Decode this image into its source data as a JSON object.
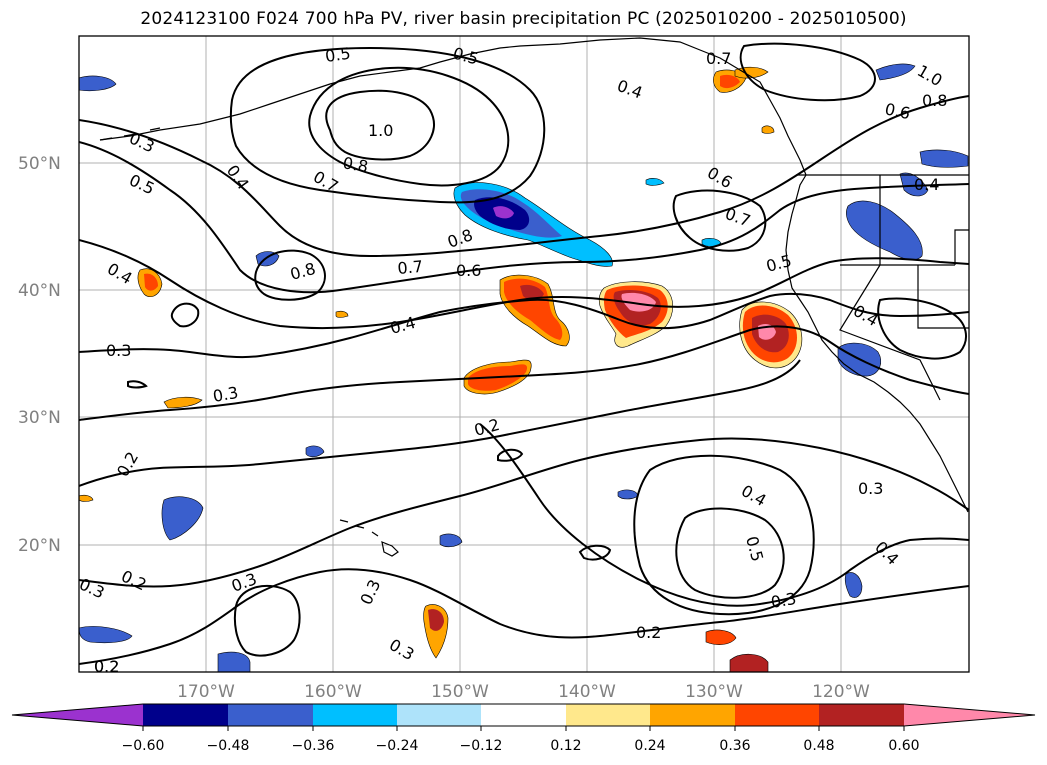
{
  "title": "2024123100 F024 700 hPa PV, river basin precipitation PC (2025010200 - 2025010500)",
  "map": {
    "lat_labels": [
      "50°N",
      "40°N",
      "30°N",
      "20°N"
    ],
    "lon_labels": [
      "170°W",
      "160°W",
      "150°W",
      "140°W",
      "130°W",
      "120°W"
    ],
    "lat_range": [
      10,
      60
    ],
    "lon_range": [
      -180,
      -110
    ],
    "contour_labels": [
      "0.5",
      "0.5",
      "0.7",
      "1.0",
      "0.8",
      "0.6",
      "0.4",
      "0.3",
      "0.4",
      "0.5",
      "1.0",
      "0.8",
      "0.7",
      "0.6",
      "0.7",
      "0.8",
      "0.8",
      "0.7",
      "0.6",
      "0.5",
      "0.4",
      "0.4",
      "0.4",
      "0.4",
      "0.3",
      "0.3",
      "0.2",
      "0.2",
      "0.2",
      "0.3",
      "0.2",
      "0.3",
      "0.3",
      "0.3",
      "0.4",
      "0.5",
      "0.3",
      "0.3",
      "0.4",
      "0.2",
      "0.2"
    ]
  },
  "colorbar": {
    "ticks": [
      "−0.60",
      "−0.48",
      "−0.36",
      "−0.24",
      "−0.12",
      "0.12",
      "0.24",
      "0.36",
      "0.48",
      "0.60"
    ],
    "colors": [
      "#9b32cf",
      "#00008b",
      "#3a5fcd",
      "#00bfff",
      "#aee3fa",
      "#ffffff",
      "#ffe88c",
      "#ffa500",
      "#ff4500",
      "#b22222",
      "#ff88aa"
    ]
  }
}
